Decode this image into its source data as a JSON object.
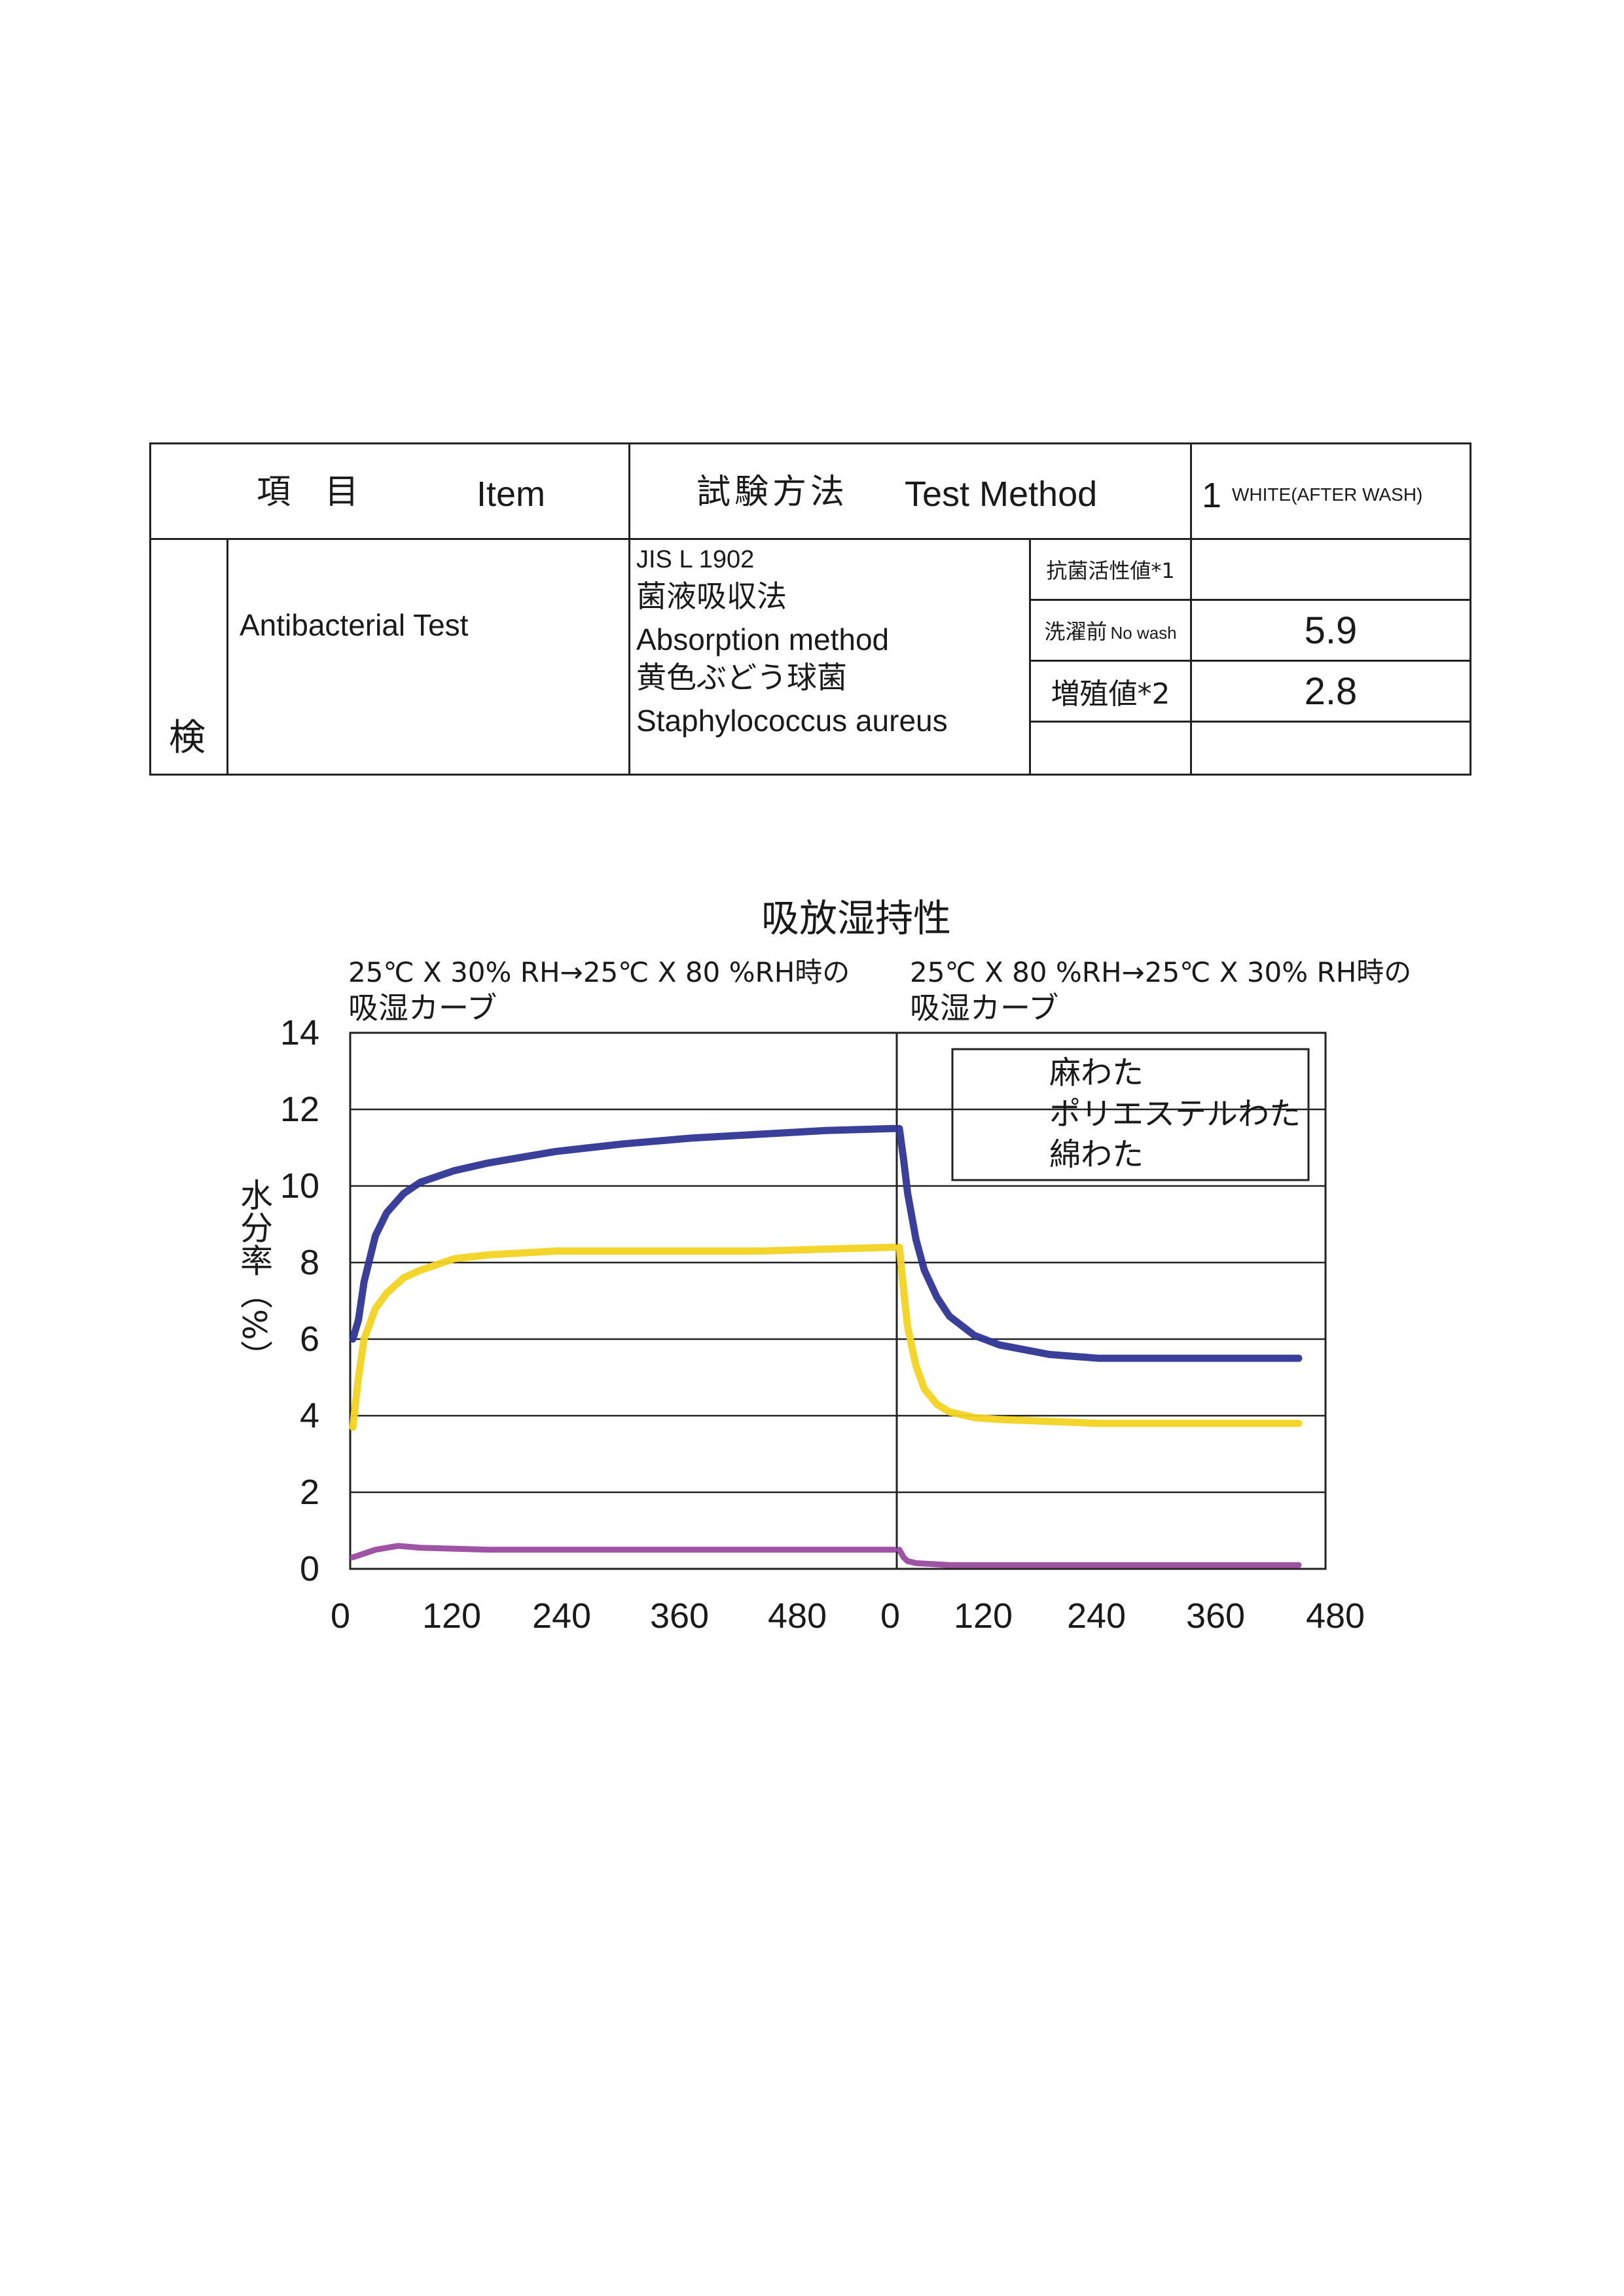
{
  "table": {
    "header": {
      "item_jp": "項　目",
      "item_en": "Item",
      "method_jp": "試験方法",
      "method_en": "Test Method",
      "sample_no": "1",
      "sample_name": "WHITE(AFTER WASH)"
    },
    "category": "検",
    "item_name": "Antibacterial Test",
    "method_lines": [
      "JIS L 1902",
      "菌液吸収法",
      "Absorption  method",
      "黄色ぶどう球菌",
      "Staphylococcus aureus"
    ],
    "rows": [
      {
        "label_jp": "抗菌活性値*1",
        "label_en": "",
        "value": ""
      },
      {
        "label_jp": "洗濯前",
        "label_en": "No wash",
        "value": "5.9"
      },
      {
        "label_jp": "増殖値*2",
        "label_en": "",
        "value": "2.8"
      },
      {
        "label_jp": "",
        "label_en": "",
        "value": ""
      }
    ]
  },
  "chart_data": {
    "type": "line",
    "title": "吸放湿持性",
    "subtitle_left": [
      "25℃ X 30% RH→25℃ X 80 %RH時の",
      "吸湿カーブ"
    ],
    "subtitle_right": [
      "25℃ X 80 %RH→25℃ X 30% RH時の",
      "吸湿カーブ"
    ],
    "ylabel": "水分率（%）",
    "ylim": [
      0,
      14
    ],
    "yticks": [
      "0",
      "2",
      "4",
      "6",
      "8",
      "10",
      "12",
      "14"
    ],
    "xticks": [
      "0",
      "120",
      "240",
      "360",
      "480",
      "0",
      "120",
      "240",
      "360",
      "480"
    ],
    "grid": true,
    "legend_position": "top-right",
    "legend": [
      "麻わた",
      "ポリエステルわた",
      "綿わた"
    ],
    "colors": {
      "blue": "#2f3594",
      "yellow": "#f2d321",
      "purple": "#9a4aa0"
    },
    "segments": [
      {
        "name": "absorption",
        "x_range": [
          0,
          480
        ],
        "series": [
          {
            "color": "blue",
            "x": [
              0,
              5,
              10,
              20,
              30,
              45,
              60,
              90,
              120,
              180,
              240,
              300,
              360,
              420,
              480
            ],
            "y": [
              6.0,
              6.5,
              7.5,
              8.7,
              9.3,
              9.8,
              10.1,
              10.4,
              10.6,
              10.9,
              11.1,
              11.25,
              11.35,
              11.45,
              11.5
            ]
          },
          {
            "color": "yellow",
            "x": [
              0,
              5,
              10,
              20,
              30,
              45,
              60,
              90,
              120,
              180,
              240,
              300,
              360,
              420,
              480
            ],
            "y": [
              3.7,
              5.0,
              6.0,
              6.8,
              7.2,
              7.6,
              7.8,
              8.1,
              8.2,
              8.3,
              8.3,
              8.3,
              8.3,
              8.35,
              8.4
            ]
          },
          {
            "color": "purple",
            "x": [
              0,
              10,
              20,
              40,
              60,
              120,
              240,
              360,
              480
            ],
            "y": [
              0.3,
              0.4,
              0.5,
              0.6,
              0.55,
              0.5,
              0.5,
              0.5,
              0.5
            ]
          }
        ]
      },
      {
        "name": "desorption",
        "x_range": [
          0,
          480
        ],
        "series": [
          {
            "color": "blue",
            "x": [
              0,
              5,
              10,
              20,
              30,
              45,
              60,
              90,
              120,
              180,
              240,
              300,
              360,
              420,
              480
            ],
            "y": [
              11.5,
              10.7,
              9.8,
              8.6,
              7.8,
              7.1,
              6.6,
              6.1,
              5.85,
              5.6,
              5.5,
              5.5,
              5.5,
              5.5,
              5.5
            ]
          },
          {
            "color": "yellow",
            "x": [
              0,
              5,
              10,
              20,
              30,
              45,
              60,
              90,
              120,
              180,
              240,
              300,
              360,
              420,
              480
            ],
            "y": [
              8.4,
              7.3,
              6.3,
              5.3,
              4.7,
              4.3,
              4.1,
              3.95,
              3.9,
              3.85,
              3.8,
              3.8,
              3.8,
              3.8,
              3.8
            ]
          },
          {
            "color": "purple",
            "x": [
              0,
              5,
              10,
              20,
              60,
              120,
              240,
              360,
              480
            ],
            "y": [
              0.5,
              0.3,
              0.2,
              0.15,
              0.1,
              0.1,
              0.1,
              0.1,
              0.1
            ]
          }
        ]
      }
    ]
  }
}
